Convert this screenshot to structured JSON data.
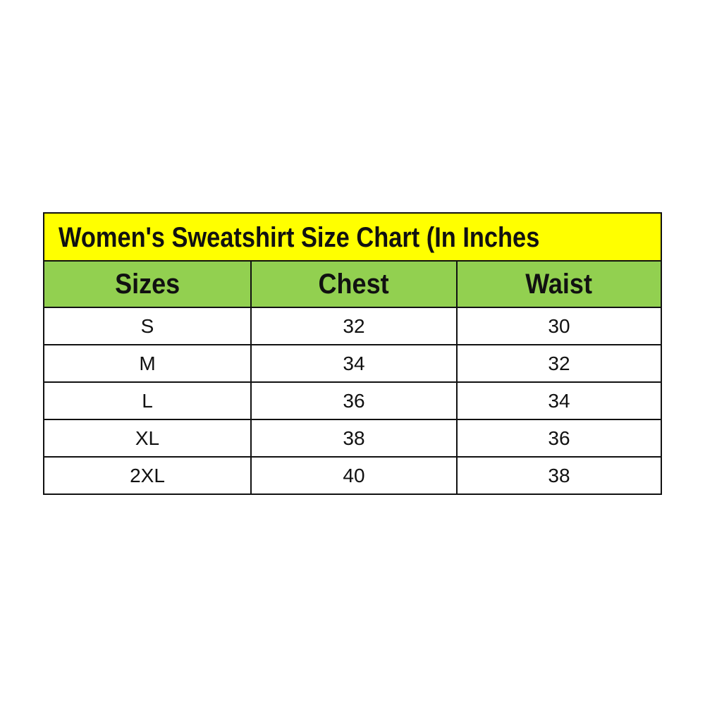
{
  "title": "Women's Sweatshirt Size Chart (In Inches",
  "colors": {
    "title_bg": "#ffff00",
    "header_bg": "#92d050"
  },
  "headers": [
    "Sizes",
    "Chest",
    "Waist"
  ],
  "rows": [
    [
      "S",
      "32",
      "30"
    ],
    [
      "M",
      "34",
      "32"
    ],
    [
      "L",
      "36",
      "34"
    ],
    [
      "XL",
      "38",
      "36"
    ],
    [
      "2XL",
      "40",
      "38"
    ]
  ]
}
